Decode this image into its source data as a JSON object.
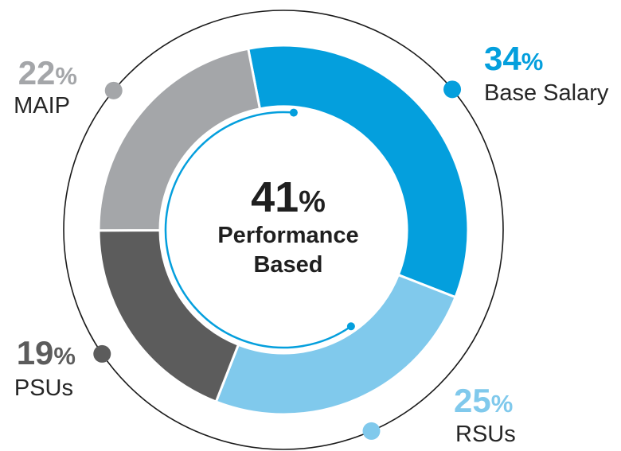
{
  "chart_data": {
    "type": "pie",
    "variant": "donut",
    "center": {
      "value": "41",
      "unit": "%",
      "label_line1": "Performance",
      "label_line2": "Based"
    },
    "start_angle_deg": -11,
    "direction": "clockwise",
    "slices": [
      {
        "label": "Base Salary",
        "value": 34,
        "color": "#049fdd"
      },
      {
        "label": "RSUs",
        "value": 25,
        "color": "#80c9ec"
      },
      {
        "label": "PSUs",
        "value": 19,
        "color": "#5c5c5c"
      },
      {
        "label": "MAIP",
        "value": 22,
        "color": "#a4a6a9"
      }
    ],
    "percent_suffix": "%",
    "bracket_color": "#049fdd",
    "outer_ring_color": "#1a1a1a"
  }
}
